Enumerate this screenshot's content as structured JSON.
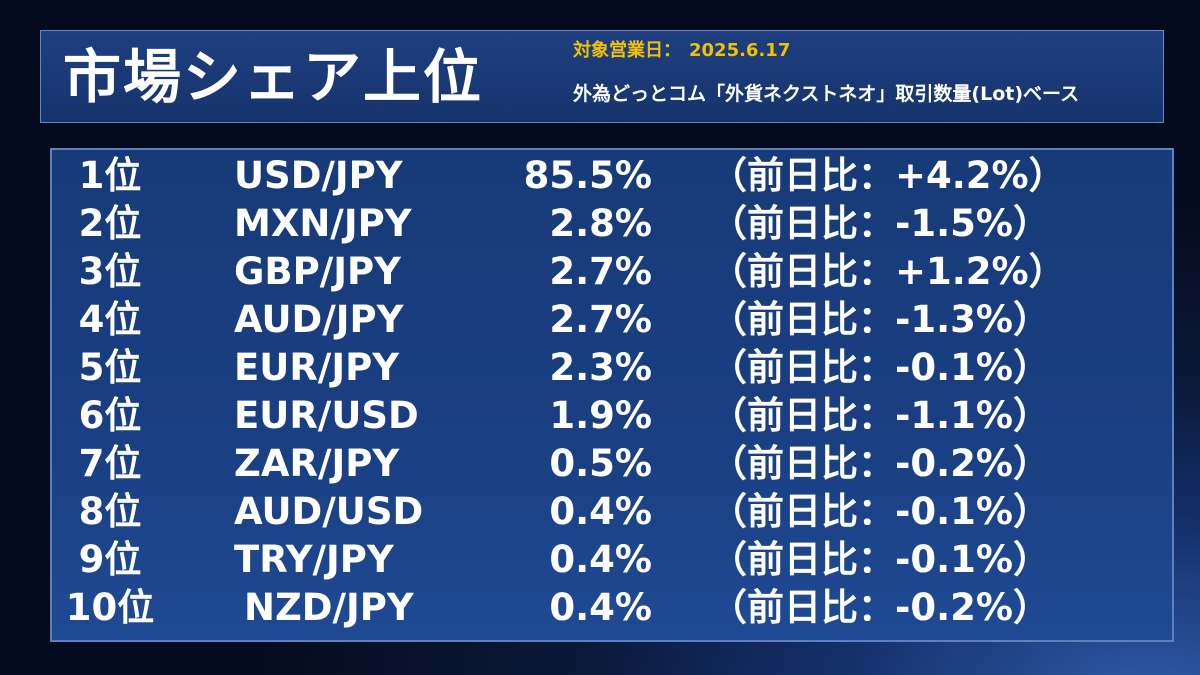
{
  "header": {
    "title": "市場シェア上位",
    "date_label": "対象営業日：",
    "date_value": "2025.6.17",
    "basis": "外為どっとコム「外貨ネクストネオ」取引数量(Lot)ベース"
  },
  "rows": [
    {
      "rank": "1位",
      "pair": "USD/JPY",
      "share": "85.5%",
      "change": "（前日比：+4.2%）"
    },
    {
      "rank": "2位",
      "pair": "MXN/JPY",
      "share": "2.8%",
      "change": "（前日比：-1.5%）"
    },
    {
      "rank": "3位",
      "pair": "GBP/JPY",
      "share": "2.7%",
      "change": "（前日比：+1.2%）"
    },
    {
      "rank": "4位",
      "pair": "AUD/JPY",
      "share": "2.7%",
      "change": "（前日比：-1.3%）"
    },
    {
      "rank": "5位",
      "pair": "EUR/JPY",
      "share": "2.3%",
      "change": "（前日比：-0.1%）"
    },
    {
      "rank": "6位",
      "pair": "EUR/USD",
      "share": "1.9%",
      "change": "（前日比：-1.1%）"
    },
    {
      "rank": "7位",
      "pair": "ZAR/JPY",
      "share": "0.5%",
      "change": "（前日比：-0.2%）"
    },
    {
      "rank": "8位",
      "pair": "AUD/USD",
      "share": "0.4%",
      "change": "（前日比：-0.1%）"
    },
    {
      "rank": "9位",
      "pair": "TRY/JPY",
      "share": "0.4%",
      "change": "（前日比：-0.1%）"
    },
    {
      "rank": "10位",
      "pair": "NZD/JPY",
      "share": "0.4%",
      "change": "（前日比：-0.2%）"
    }
  ],
  "colors": {
    "date_text": "#f2c200",
    "header_bg": "#1e3f80",
    "panel_bg": "#173a78",
    "panel_border": "#5f7fbf"
  }
}
